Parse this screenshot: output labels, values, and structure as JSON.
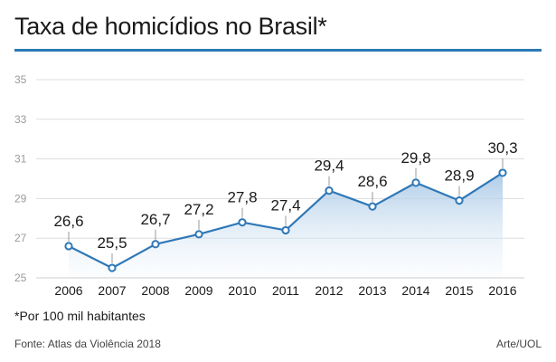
{
  "header": {
    "title": "Taxa de homicídios no Brasil*"
  },
  "footer": {
    "footnote": "*Por 100 mil habitantes",
    "source": "Fonte: Atlas da Violência 2018",
    "credit": "Arte/UOL"
  },
  "colors": {
    "accent": "#2a7ab5",
    "line": "#2f78b7",
    "area_top": "#a9c9e6",
    "grid": "#dddddd",
    "axis_text": "#9a9a9a"
  },
  "chart_data": {
    "type": "area",
    "title": "Taxa de homicídios no Brasil*",
    "xlabel": "",
    "ylabel": "",
    "ylim": [
      25,
      35
    ],
    "yticks": [
      25,
      27,
      29,
      31,
      33,
      35
    ],
    "ytick_labels": [
      "25",
      "27",
      "29",
      "31",
      "33",
      "35"
    ],
    "grid": true,
    "legend": "none",
    "categories": [
      "2006",
      "2007",
      "2008",
      "2009",
      "2010",
      "2011",
      "2012",
      "2013",
      "2014",
      "2015",
      "2016"
    ],
    "values": [
      26.6,
      25.5,
      26.7,
      27.2,
      27.8,
      27.4,
      29.4,
      28.6,
      29.8,
      28.9,
      30.3
    ],
    "labels": [
      "26,6",
      "25,5",
      "26,7",
      "27,2",
      "27,8",
      "27,4",
      "29,4",
      "28,6",
      "29,8",
      "28,9",
      "30,3"
    ]
  }
}
